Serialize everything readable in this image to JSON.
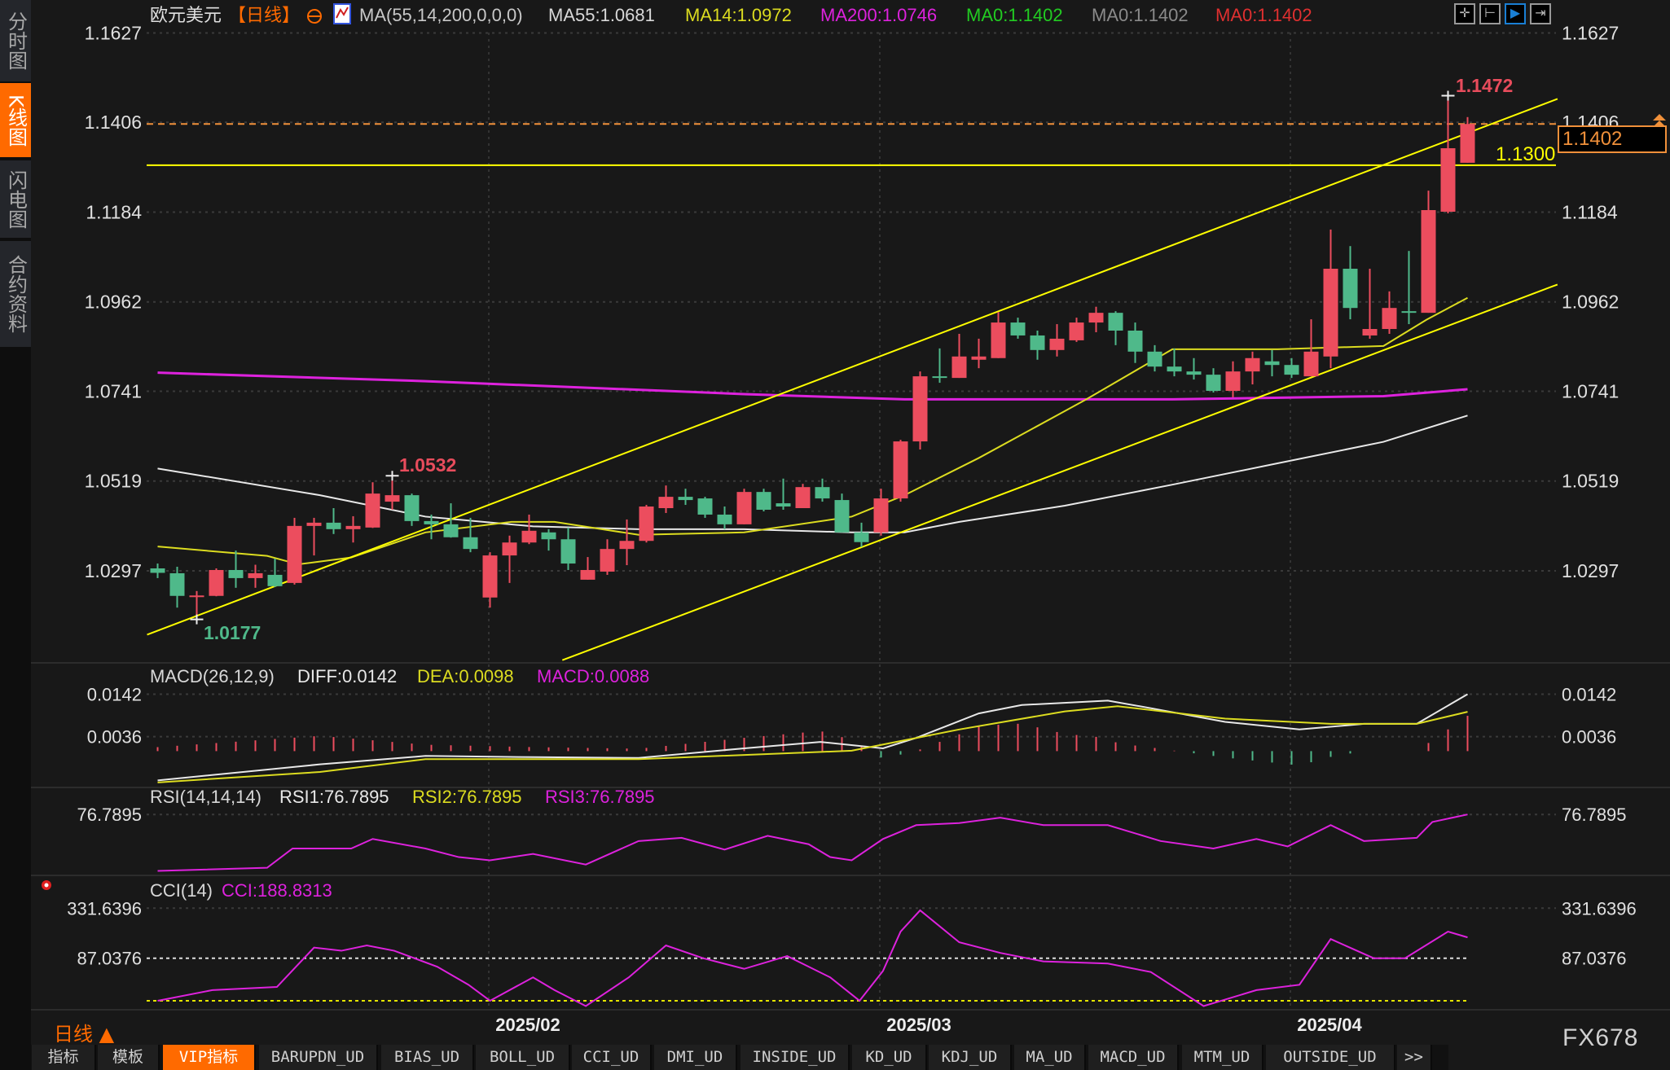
{
  "sidebar": {
    "items": [
      {
        "label": "分时图"
      },
      {
        "label": "K线图",
        "active": true
      },
      {
        "label": "闪电图"
      },
      {
        "label": "合约资料"
      }
    ]
  },
  "header": {
    "symbol": "欧元美元",
    "period": "【日线】",
    "ma_params": "MA(55,14,200,0,0,0)",
    "ma55": "MA55:1.0681",
    "ma14": "MA14:1.0972",
    "ma200": "MA200:1.0746",
    "ma0a": "MA0:1.1402",
    "ma0b": "MA0:1.1402",
    "ma0c": "MA0:1.1402"
  },
  "toolbar_icons": [
    "crosshair-icon",
    "range-icon",
    "play-icon",
    "export-icon"
  ],
  "colors": {
    "up": "#ec4d5e",
    "down": "#4fb98a",
    "ma55": "#e8e8e8",
    "ma14": "#dcdc20",
    "ma200": "#dd22dd",
    "trend": "#ffff00",
    "current": "#f0903a",
    "accent": "#ff6a00"
  },
  "price_axis": {
    "ticks": [
      "1.1627",
      "1.1406",
      "1.1184",
      "1.0962",
      "1.0741",
      "1.0519",
      "1.0297"
    ],
    "range": [
      1.0297,
      1.1627
    ]
  },
  "annotations": {
    "high": "1.1472",
    "mid_high": "1.0532",
    "low": "1.0177",
    "level": "1.1300",
    "level_value": 1.13,
    "current": "1.1402",
    "current_value": 1.1402
  },
  "dates": [
    "2025/02",
    "2025/03",
    "2025/04"
  ],
  "chart_data": [
    {
      "type": "candlestick",
      "ylim": [
        1.0297,
        1.1627
      ],
      "ohlc": [
        [
          1.0303,
          1.0315,
          1.0279,
          1.0292
        ],
        [
          1.0291,
          1.0307,
          1.0206,
          1.0235
        ],
        [
          1.0233,
          1.0247,
          1.0177,
          1.0236
        ],
        [
          1.0235,
          1.0303,
          1.0234,
          1.0299
        ],
        [
          1.0299,
          1.0347,
          1.0255,
          1.0279
        ],
        [
          1.0279,
          1.0312,
          1.0255,
          1.0291
        ],
        [
          1.0287,
          1.0327,
          1.0257,
          1.0259
        ],
        [
          1.0267,
          1.0428,
          1.0263,
          1.0408
        ],
        [
          1.0408,
          1.0428,
          1.0335,
          1.0416
        ],
        [
          1.0416,
          1.0452,
          1.0388,
          1.04
        ],
        [
          1.04,
          1.0432,
          1.0367,
          1.0408
        ],
        [
          1.0404,
          1.0516,
          1.0403,
          1.0488
        ],
        [
          1.0468,
          1.0532,
          1.0448,
          1.0484
        ],
        [
          1.0484,
          1.0488,
          1.0408,
          1.042
        ],
        [
          1.042,
          1.0436,
          1.0375,
          1.0412
        ],
        [
          1.0412,
          1.0464,
          1.0379,
          1.038
        ],
        [
          1.038,
          1.0428,
          1.0343,
          1.0351
        ],
        [
          1.0231,
          1.0343,
          1.0206,
          1.0335
        ],
        [
          1.0335,
          1.0384,
          1.0267,
          1.0367
        ],
        [
          1.0367,
          1.0436,
          1.0363,
          1.0396
        ],
        [
          1.0392,
          1.04,
          1.0347,
          1.0375
        ],
        [
          1.0375,
          1.0404,
          1.0299,
          1.0315
        ],
        [
          1.0275,
          1.0331,
          1.0275,
          1.0299
        ],
        [
          1.0295,
          1.0375,
          1.0287,
          1.0351
        ],
        [
          1.0351,
          1.0424,
          1.0311,
          1.0371
        ],
        [
          1.0371,
          1.046,
          1.0367,
          1.0456
        ],
        [
          1.0452,
          1.0508,
          1.044,
          1.048
        ],
        [
          1.048,
          1.05,
          1.046,
          1.0472
        ],
        [
          1.0476,
          1.048,
          1.0428,
          1.0436
        ],
        [
          1.0436,
          1.0456,
          1.04,
          1.0412
        ],
        [
          1.0412,
          1.05,
          1.0412,
          1.0492
        ],
        [
          1.0492,
          1.05,
          1.0444,
          1.0448
        ],
        [
          1.0464,
          1.0525,
          1.0448,
          1.0456
        ],
        [
          1.0452,
          1.0512,
          1.0452,
          1.0504
        ],
        [
          1.0504,
          1.0525,
          1.0468,
          1.0476
        ],
        [
          1.0472,
          1.0488,
          1.0392,
          1.0392
        ],
        [
          1.0392,
          1.0416,
          1.0356,
          1.0368
        ],
        [
          1.0392,
          1.05,
          1.0384,
          1.0476
        ],
        [
          1.0476,
          1.0621,
          1.0468,
          1.0617
        ],
        [
          1.0617,
          1.079,
          1.0597,
          1.0778
        ],
        [
          1.0778,
          1.0847,
          1.0762,
          1.0776
        ],
        [
          1.0774,
          1.0883,
          1.0774,
          1.0827
        ],
        [
          1.0819,
          1.0871,
          1.0798,
          1.0827
        ],
        [
          1.0823,
          1.0937,
          1.0823,
          1.0911
        ],
        [
          1.0911,
          1.0923,
          1.0871,
          1.0879
        ],
        [
          1.0879,
          1.0891,
          1.0819,
          1.0843
        ],
        [
          1.0843,
          1.0907,
          1.0827,
          1.0871
        ],
        [
          1.0867,
          1.0923,
          1.0863,
          1.0911
        ],
        [
          1.0911,
          1.095,
          1.0887,
          1.0935
        ],
        [
          1.0935,
          1.0939,
          1.0855,
          1.0891
        ],
        [
          1.0891,
          1.0911,
          1.0811,
          1.0839
        ],
        [
          1.0839,
          1.0855,
          1.079,
          1.0802
        ],
        [
          1.0802,
          1.0847,
          1.0778,
          1.079
        ],
        [
          1.079,
          1.0823,
          1.077,
          1.0782
        ],
        [
          1.0782,
          1.0798,
          1.0738,
          1.0742
        ],
        [
          1.0742,
          1.0815,
          1.0726,
          1.079
        ],
        [
          1.079,
          1.0839,
          1.0758,
          1.0823
        ],
        [
          1.0815,
          1.0843,
          1.0778,
          1.0806
        ],
        [
          1.0806,
          1.0823,
          1.0774,
          1.0782
        ],
        [
          1.0778,
          1.0919,
          1.0778,
          1.0839
        ],
        [
          1.0827,
          1.1141,
          1.0798,
          1.1044
        ],
        [
          1.1044,
          1.11,
          1.0919,
          1.0947
        ],
        [
          1.0879,
          1.1044,
          1.0871,
          1.0895
        ],
        [
          1.0895,
          1.0988,
          1.0883,
          1.0947
        ],
        [
          1.0939,
          1.1088,
          1.0907,
          1.0935
        ],
        [
          1.0935,
          1.1237,
          1.0935,
          1.1189
        ],
        [
          1.1185,
          1.1472,
          1.1181,
          1.1342
        ],
        [
          1.1306,
          1.1419,
          1.1306,
          1.1402
        ]
      ],
      "ma55": [
        [
          0,
          1.055
        ],
        [
          8.3,
          1.0484
        ],
        [
          13.7,
          1.0431
        ],
        [
          19.2,
          1.0407
        ],
        [
          24.6,
          1.04
        ],
        [
          30,
          1.04
        ],
        [
          35.5,
          1.0392
        ],
        [
          38.2,
          1.0392
        ],
        [
          41,
          1.0418
        ],
        [
          46.4,
          1.0458
        ],
        [
          51.9,
          1.051
        ],
        [
          57.3,
          1.0563
        ],
        [
          62.7,
          1.0616
        ],
        [
          67,
          1.0681
        ]
      ],
      "ma14": [
        [
          0,
          1.0357
        ],
        [
          5.6,
          1.0334
        ],
        [
          7.2,
          1.0313
        ],
        [
          9.9,
          1.033
        ],
        [
          13.7,
          1.0392
        ],
        [
          18.1,
          1.0418
        ],
        [
          20.3,
          1.0418
        ],
        [
          24.6,
          1.0386
        ],
        [
          30,
          1.0392
        ],
        [
          35.5,
          1.0431
        ],
        [
          38.2,
          1.0484
        ],
        [
          42,
          1.0576
        ],
        [
          47.5,
          1.0721
        ],
        [
          51.9,
          1.0845
        ],
        [
          57.3,
          1.0845
        ],
        [
          62.7,
          1.0853
        ],
        [
          64.9,
          1.0918
        ],
        [
          67,
          1.0972
        ]
      ],
      "ma200": [
        [
          0,
          1.0787
        ],
        [
          13.7,
          1.0766
        ],
        [
          30,
          1.0734
        ],
        [
          38.2,
          1.0721
        ],
        [
          51.9,
          1.0721
        ],
        [
          62.7,
          1.0729
        ],
        [
          67,
          1.0746
        ]
      ],
      "trendlines": [
        [
          [
            -0.54,
            1.0139
          ],
          [
            71.6,
            1.1464
          ]
        ],
        [
          [
            20.7,
            1.0076
          ],
          [
            71.6,
            1.1005
          ]
        ]
      ]
    },
    {
      "type": "macd",
      "title": "MACD(26,12,9)",
      "diff_label": "DIFF:0.0142",
      "dea_label": "DEA:0.0098",
      "macd_label": "MACD:0.0088",
      "ticks": [
        "0.0142",
        "0.0036"
      ],
      "diff": [
        [
          0,
          -0.0073
        ],
        [
          8.3,
          -0.0033
        ],
        [
          13.7,
          -0.0012
        ],
        [
          19.2,
          -0.0015
        ],
        [
          24.6,
          -0.0017
        ],
        [
          30,
          0.0007
        ],
        [
          33.9,
          0.0023
        ],
        [
          37.1,
          0.0007
        ],
        [
          38.8,
          0.0033
        ],
        [
          42,
          0.0094
        ],
        [
          44.2,
          0.0115
        ],
        [
          48.6,
          0.0126
        ],
        [
          50.8,
          0.0107
        ],
        [
          54.6,
          0.0073
        ],
        [
          58.4,
          0.0054
        ],
        [
          61.7,
          0.0068
        ],
        [
          64.4,
          0.0068
        ],
        [
          67,
          0.0142
        ]
      ],
      "dea": [
        [
          0,
          -0.0078
        ],
        [
          8.3,
          -0.0052
        ],
        [
          13.7,
          -0.002
        ],
        [
          24.6,
          -0.002
        ],
        [
          35.5,
          0.0001
        ],
        [
          41,
          0.0054
        ],
        [
          46.4,
          0.0099
        ],
        [
          49.1,
          0.0112
        ],
        [
          54.6,
          0.0081
        ],
        [
          60,
          0.0068
        ],
        [
          64.4,
          0.0068
        ],
        [
          67,
          0.0098
        ]
      ]
    },
    {
      "type": "line",
      "title": "RSI(14,14,14)",
      "rsi1_label": "RSI1:76.7895",
      "rsi2_label": "RSI2:76.7895",
      "rsi3_label": "RSI3:76.7895",
      "ticks": [
        "76.7895"
      ],
      "rsi": [
        [
          0,
          36.0
        ],
        [
          5.6,
          38.3
        ],
        [
          6.9,
          52.2
        ],
        [
          9.9,
          52.2
        ],
        [
          11,
          59.1
        ],
        [
          13.7,
          52.2
        ],
        [
          15.4,
          46.0
        ],
        [
          17,
          43.7
        ],
        [
          19.2,
          48.3
        ],
        [
          21.9,
          40.6
        ],
        [
          24.6,
          57.6
        ],
        [
          26.8,
          59.9
        ],
        [
          29,
          51.4
        ],
        [
          31.2,
          61.4
        ],
        [
          33.3,
          55.3
        ],
        [
          34.4,
          46.0
        ],
        [
          35.5,
          43.7
        ],
        [
          37.1,
          59.1
        ],
        [
          38.8,
          69.1
        ],
        [
          41,
          70.6
        ],
        [
          43.1,
          74.5
        ],
        [
          45.3,
          69.1
        ],
        [
          48.6,
          69.1
        ],
        [
          51.3,
          57.6
        ],
        [
          54,
          52.2
        ],
        [
          56.2,
          59.1
        ],
        [
          57.8,
          53.7
        ],
        [
          60,
          69.1
        ],
        [
          61.7,
          57.6
        ],
        [
          64.4,
          59.9
        ],
        [
          65.2,
          71.4
        ],
        [
          67,
          76.79
        ]
      ]
    },
    {
      "type": "line",
      "title": "CCI(14)",
      "cci_label": "CCI:188.8313",
      "ticks": [
        "331.6396",
        "87.0376"
      ],
      "cci": [
        [
          0,
          -121
        ],
        [
          2.8,
          -69
        ],
        [
          6.1,
          -53.5
        ],
        [
          8,
          139
        ],
        [
          9.4,
          123.5
        ],
        [
          10.7,
          149.5
        ],
        [
          12.1,
          123.5
        ],
        [
          14.3,
          45.4
        ],
        [
          15.9,
          -43
        ],
        [
          17,
          -121
        ],
        [
          19.2,
          -6.6
        ],
        [
          20.3,
          -69
        ],
        [
          21.9,
          -147
        ],
        [
          24.1,
          -6.6
        ],
        [
          26,
          149.5
        ],
        [
          27.9,
          87
        ],
        [
          30,
          35
        ],
        [
          32.2,
          97.4
        ],
        [
          34.4,
          -6.6
        ],
        [
          35.9,
          -121
        ],
        [
          37.1,
          24.6
        ],
        [
          38,
          217
        ],
        [
          39,
          321
        ],
        [
          41,
          165
        ],
        [
          43.1,
          113
        ],
        [
          45.3,
          71.4
        ],
        [
          48.6,
          61
        ],
        [
          50.8,
          19.4
        ],
        [
          53.5,
          -147
        ],
        [
          56.2,
          -69
        ],
        [
          58.4,
          -43
        ],
        [
          60,
          180.7
        ],
        [
          62.2,
          87
        ],
        [
          63.8,
          87
        ],
        [
          66,
          217
        ],
        [
          67,
          188.8
        ]
      ]
    }
  ],
  "footer": {
    "period": "日线",
    "brand": "FX678",
    "tabs": [
      "指标",
      "模板",
      "VIP指标",
      "BARUPDN_UD",
      "BIAS_UD",
      "BOLL_UD",
      "CCI_UD",
      "DMI_UD",
      "INSIDE_UD",
      "KD_UD",
      "KDJ_UD",
      "MA_UD",
      "MACD_UD",
      "MTM_UD",
      "OUTSIDE_UD",
      ">>"
    ],
    "active_tab": "VIP指标"
  }
}
